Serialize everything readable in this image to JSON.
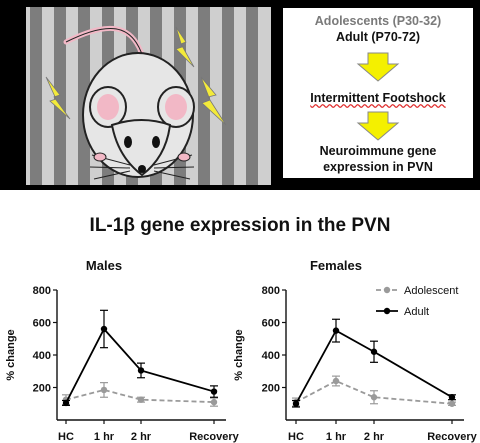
{
  "flowchart": {
    "group_adolescent": "Adolescents (P30-32)",
    "group_adult": "Adult (P70-72)",
    "step_stress": "Intermittent Footshock",
    "outcome_line1": "Neuroimmune gene",
    "outcome_line2": "expression in PVN"
  },
  "figure_title": "IL-1β gene expression in the PVN",
  "colors": {
    "adolescent": "#9a9a9a",
    "adult": "#000000",
    "arrow": "#f4f000",
    "underline": "#e03030"
  },
  "chart_data": [
    {
      "type": "line",
      "title": "Males",
      "ylabel": "% change",
      "categories": [
        "HC",
        "1 hr",
        "2 hr",
        "Recovery"
      ],
      "ylim": [
        0,
        800
      ],
      "yticks": [
        200,
        400,
        600,
        800
      ],
      "series": [
        {
          "name": "Adolescent",
          "values": [
            125,
            185,
            125,
            110
          ],
          "errors": [
            30,
            45,
            15,
            25
          ],
          "style": "dashed"
        },
        {
          "name": "Adult",
          "values": [
            105,
            560,
            305,
            175
          ],
          "errors": [
            15,
            115,
            45,
            35
          ],
          "style": "solid"
        }
      ]
    },
    {
      "type": "line",
      "title": "Females",
      "ylabel": "% change",
      "categories": [
        "HC",
        "1 hr",
        "2 hr",
        "Recovery"
      ],
      "ylim": [
        0,
        800
      ],
      "yticks": [
        200,
        400,
        600,
        800
      ],
      "legend": "top-right",
      "series": [
        {
          "name": "Adolescent",
          "values": [
            110,
            240,
            140,
            100
          ],
          "errors": [
            25,
            30,
            40,
            10
          ],
          "style": "dashed"
        },
        {
          "name": "Adult",
          "values": [
            100,
            550,
            420,
            140
          ],
          "errors": [
            20,
            70,
            65,
            15
          ],
          "style": "solid"
        }
      ]
    }
  ]
}
